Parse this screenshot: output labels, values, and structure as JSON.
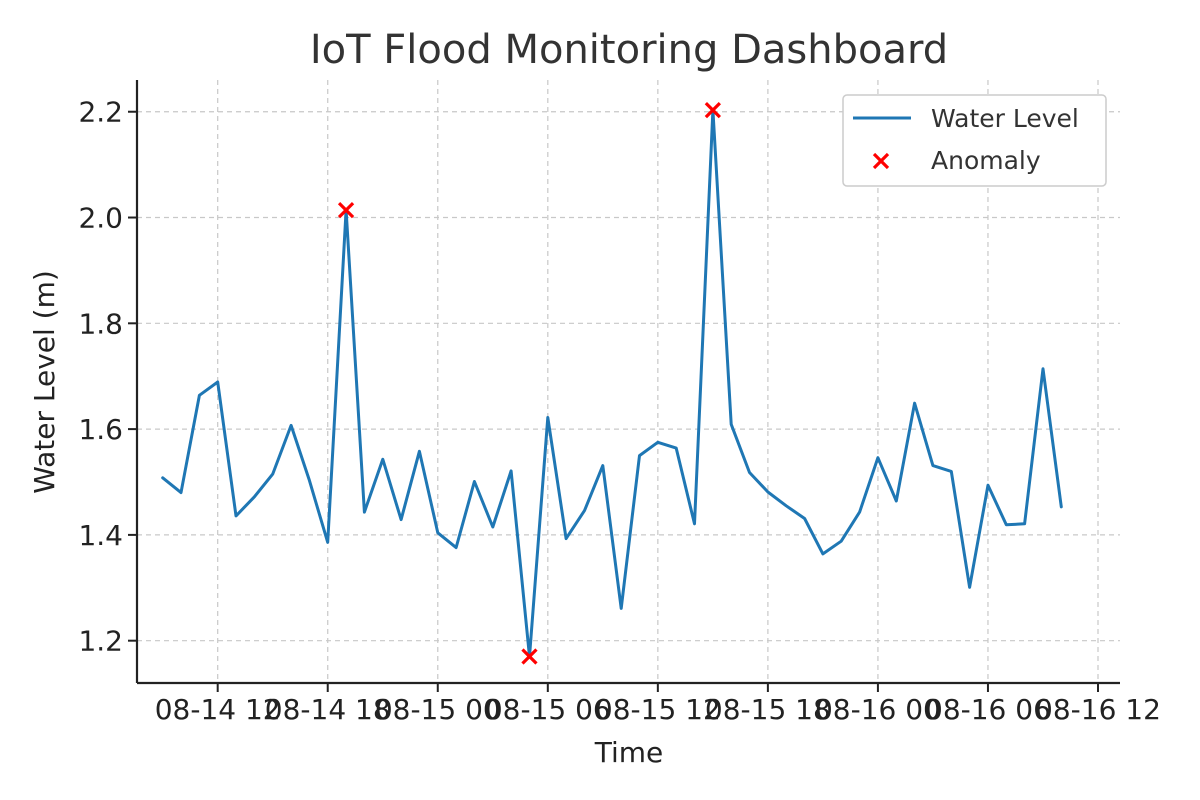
{
  "chart_data": {
    "type": "line",
    "title": "IoT Flood Monitoring Dashboard",
    "xlabel": "Time",
    "ylabel": "Water Level (m)",
    "x_tick_labels": [
      "08-14 12",
      "08-14 18",
      "08-15 00",
      "08-15 06",
      "08-15 12",
      "08-15 18",
      "08-16 00",
      "08-16 06",
      "08-16 12"
    ],
    "x_tick_hours": [
      12,
      18,
      24,
      30,
      36,
      42,
      48,
      54,
      60
    ],
    "x_start_hour": 9,
    "x_step_hours": 1,
    "xlim_hours": [
      7.6,
      61.2
    ],
    "y_ticks": [
      "1.2",
      "1.4",
      "1.6",
      "1.8",
      "2.0",
      "2.2"
    ],
    "ylim": [
      1.12,
      2.26
    ],
    "grid": true,
    "legend_position": "top-right",
    "colors": {
      "line": "#1f77b4",
      "anomaly": "#ff0000"
    },
    "series": [
      {
        "name": "Water Level",
        "values": [
          1.508,
          1.48,
          1.664,
          1.689,
          1.436,
          1.472,
          1.515,
          1.607,
          1.503,
          1.386,
          2.014,
          1.443,
          1.543,
          1.429,
          1.558,
          1.404,
          1.376,
          1.501,
          1.415,
          1.521,
          1.17,
          1.622,
          1.393,
          1.446,
          1.531,
          1.261,
          1.55,
          1.575,
          1.564,
          1.421,
          2.203,
          1.609,
          1.518,
          1.481,
          1.455,
          1.431,
          1.364,
          1.388,
          1.443,
          1.546,
          1.464,
          1.649,
          1.531,
          1.52,
          1.301,
          1.494,
          1.419,
          1.421,
          1.714,
          1.453
        ]
      },
      {
        "name": "Anomaly",
        "type": "scatter",
        "indices": [
          10,
          20,
          30
        ],
        "values": [
          2.014,
          1.17,
          2.203
        ]
      }
    ]
  }
}
